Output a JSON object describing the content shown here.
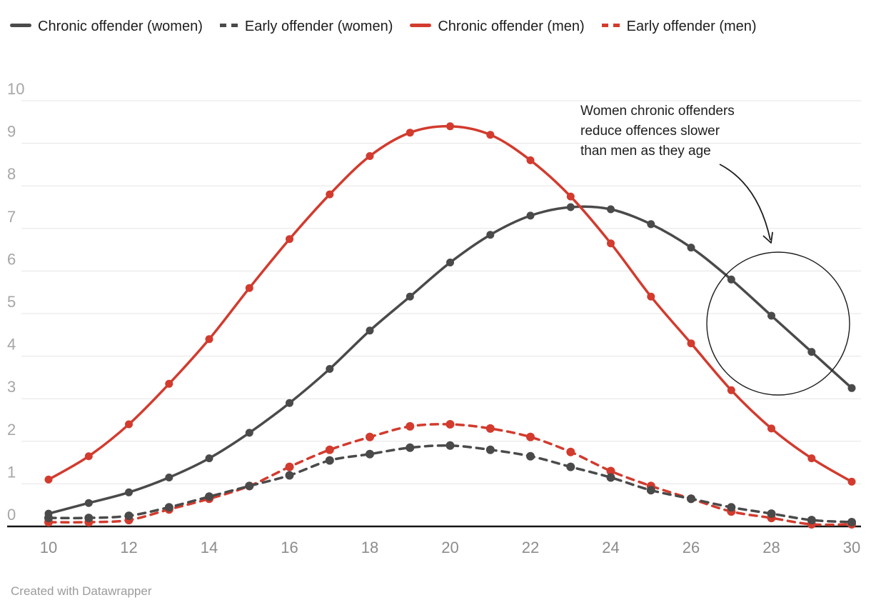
{
  "legend": {
    "items": [
      {
        "label": "Chronic offender (women)",
        "color": "#4a4a4a",
        "style": "solid"
      },
      {
        "label": "Early offender (women)",
        "color": "#4a4a4a",
        "style": "dashed"
      },
      {
        "label": "Chronic offender (men)",
        "color": "#d23b2e",
        "style": "solid"
      },
      {
        "label": "Early offender (men)",
        "color": "#d23b2e",
        "style": "dashed"
      }
    ]
  },
  "annotation": {
    "lines": [
      "Women chronic offenders",
      "reduce offences slower",
      "than men as they age"
    ]
  },
  "footer": {
    "text": "Created with Datawrapper"
  },
  "chart_data": {
    "type": "line",
    "title": "",
    "xlabel": "",
    "ylabel": "",
    "x": [
      10,
      11,
      12,
      13,
      14,
      15,
      16,
      17,
      18,
      19,
      20,
      21,
      22,
      23,
      24,
      25,
      26,
      27,
      28,
      29,
      30
    ],
    "xticks": [
      10,
      12,
      14,
      16,
      18,
      20,
      22,
      24,
      26,
      28,
      30
    ],
    "yticks": [
      0,
      1,
      2,
      3,
      4,
      5,
      6,
      7,
      8,
      9,
      10
    ],
    "ylim": [
      0,
      10
    ],
    "xlim": [
      10,
      30
    ],
    "grid": "horizontal",
    "legend_position": "top",
    "annotation_text": "Women chronic offenders reduce offences slower than men as they age",
    "series": [
      {
        "name": "Chronic offender (women)",
        "color": "#4a4a4a",
        "dash": "solid",
        "values": [
          0.3,
          0.55,
          0.8,
          1.15,
          1.6,
          2.2,
          2.9,
          3.7,
          4.6,
          5.4,
          6.2,
          6.85,
          7.3,
          7.5,
          7.45,
          7.1,
          6.55,
          5.8,
          4.95,
          4.1,
          3.25
        ]
      },
      {
        "name": "Early offender (women)",
        "color": "#4a4a4a",
        "dash": "dashed",
        "values": [
          0.2,
          0.2,
          0.25,
          0.45,
          0.7,
          0.95,
          1.2,
          1.55,
          1.7,
          1.85,
          1.9,
          1.8,
          1.65,
          1.4,
          1.15,
          0.85,
          0.65,
          0.45,
          0.3,
          0.15,
          0.1
        ]
      },
      {
        "name": "Chronic offender (men)",
        "color": "#d23b2e",
        "dash": "solid",
        "values": [
          1.1,
          1.65,
          2.4,
          3.35,
          4.4,
          5.6,
          6.75,
          7.8,
          8.7,
          9.25,
          9.4,
          9.2,
          8.6,
          7.75,
          6.65,
          5.4,
          4.3,
          3.2,
          2.3,
          1.6,
          1.05
        ]
      },
      {
        "name": "Early offender (men)",
        "color": "#d23b2e",
        "dash": "dashed",
        "values": [
          0.1,
          0.1,
          0.15,
          0.4,
          0.65,
          0.95,
          1.4,
          1.8,
          2.1,
          2.35,
          2.4,
          2.3,
          2.1,
          1.75,
          1.3,
          0.95,
          0.65,
          0.35,
          0.2,
          0.05,
          0.05
        ]
      }
    ]
  }
}
